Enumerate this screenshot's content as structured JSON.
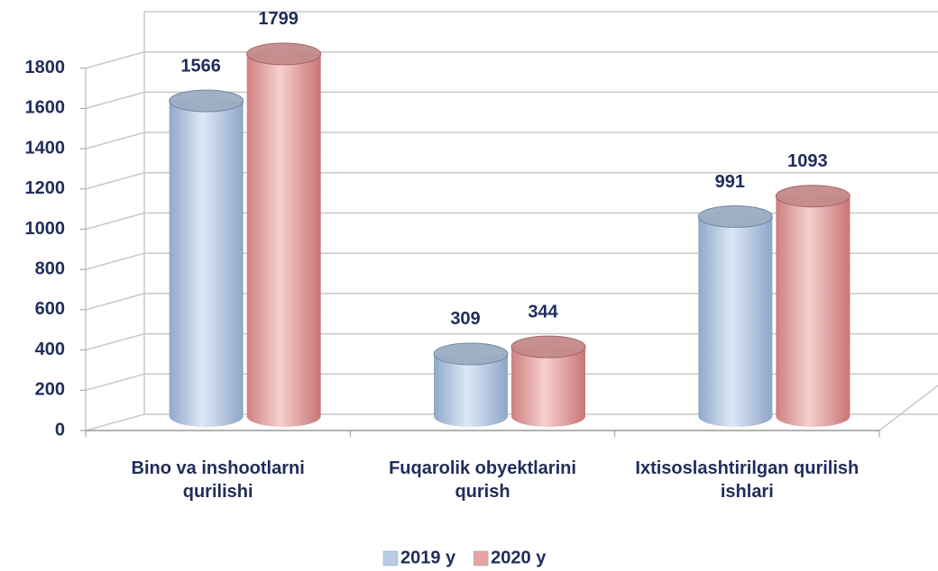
{
  "chart_data": {
    "type": "bar3d",
    "categories": [
      "Bino va inshootlarni qurilishi",
      "Fuqarolik obyektlarini qurish",
      "Ixtisoslashtirilgan qurilish ishlari"
    ],
    "series": [
      {
        "name": "2019 y",
        "color": "#b8cce4",
        "values": [
          1566,
          309,
          991
        ]
      },
      {
        "name": "2020 y",
        "color": "#e6a4a4",
        "values": [
          1799,
          344,
          1093
        ]
      }
    ],
    "ylim": [
      0,
      2000
    ],
    "yticks": [
      0,
      200,
      400,
      600,
      800,
      1000,
      1200,
      1400,
      1600,
      1800
    ],
    "grid": true,
    "legend": "bottom"
  }
}
